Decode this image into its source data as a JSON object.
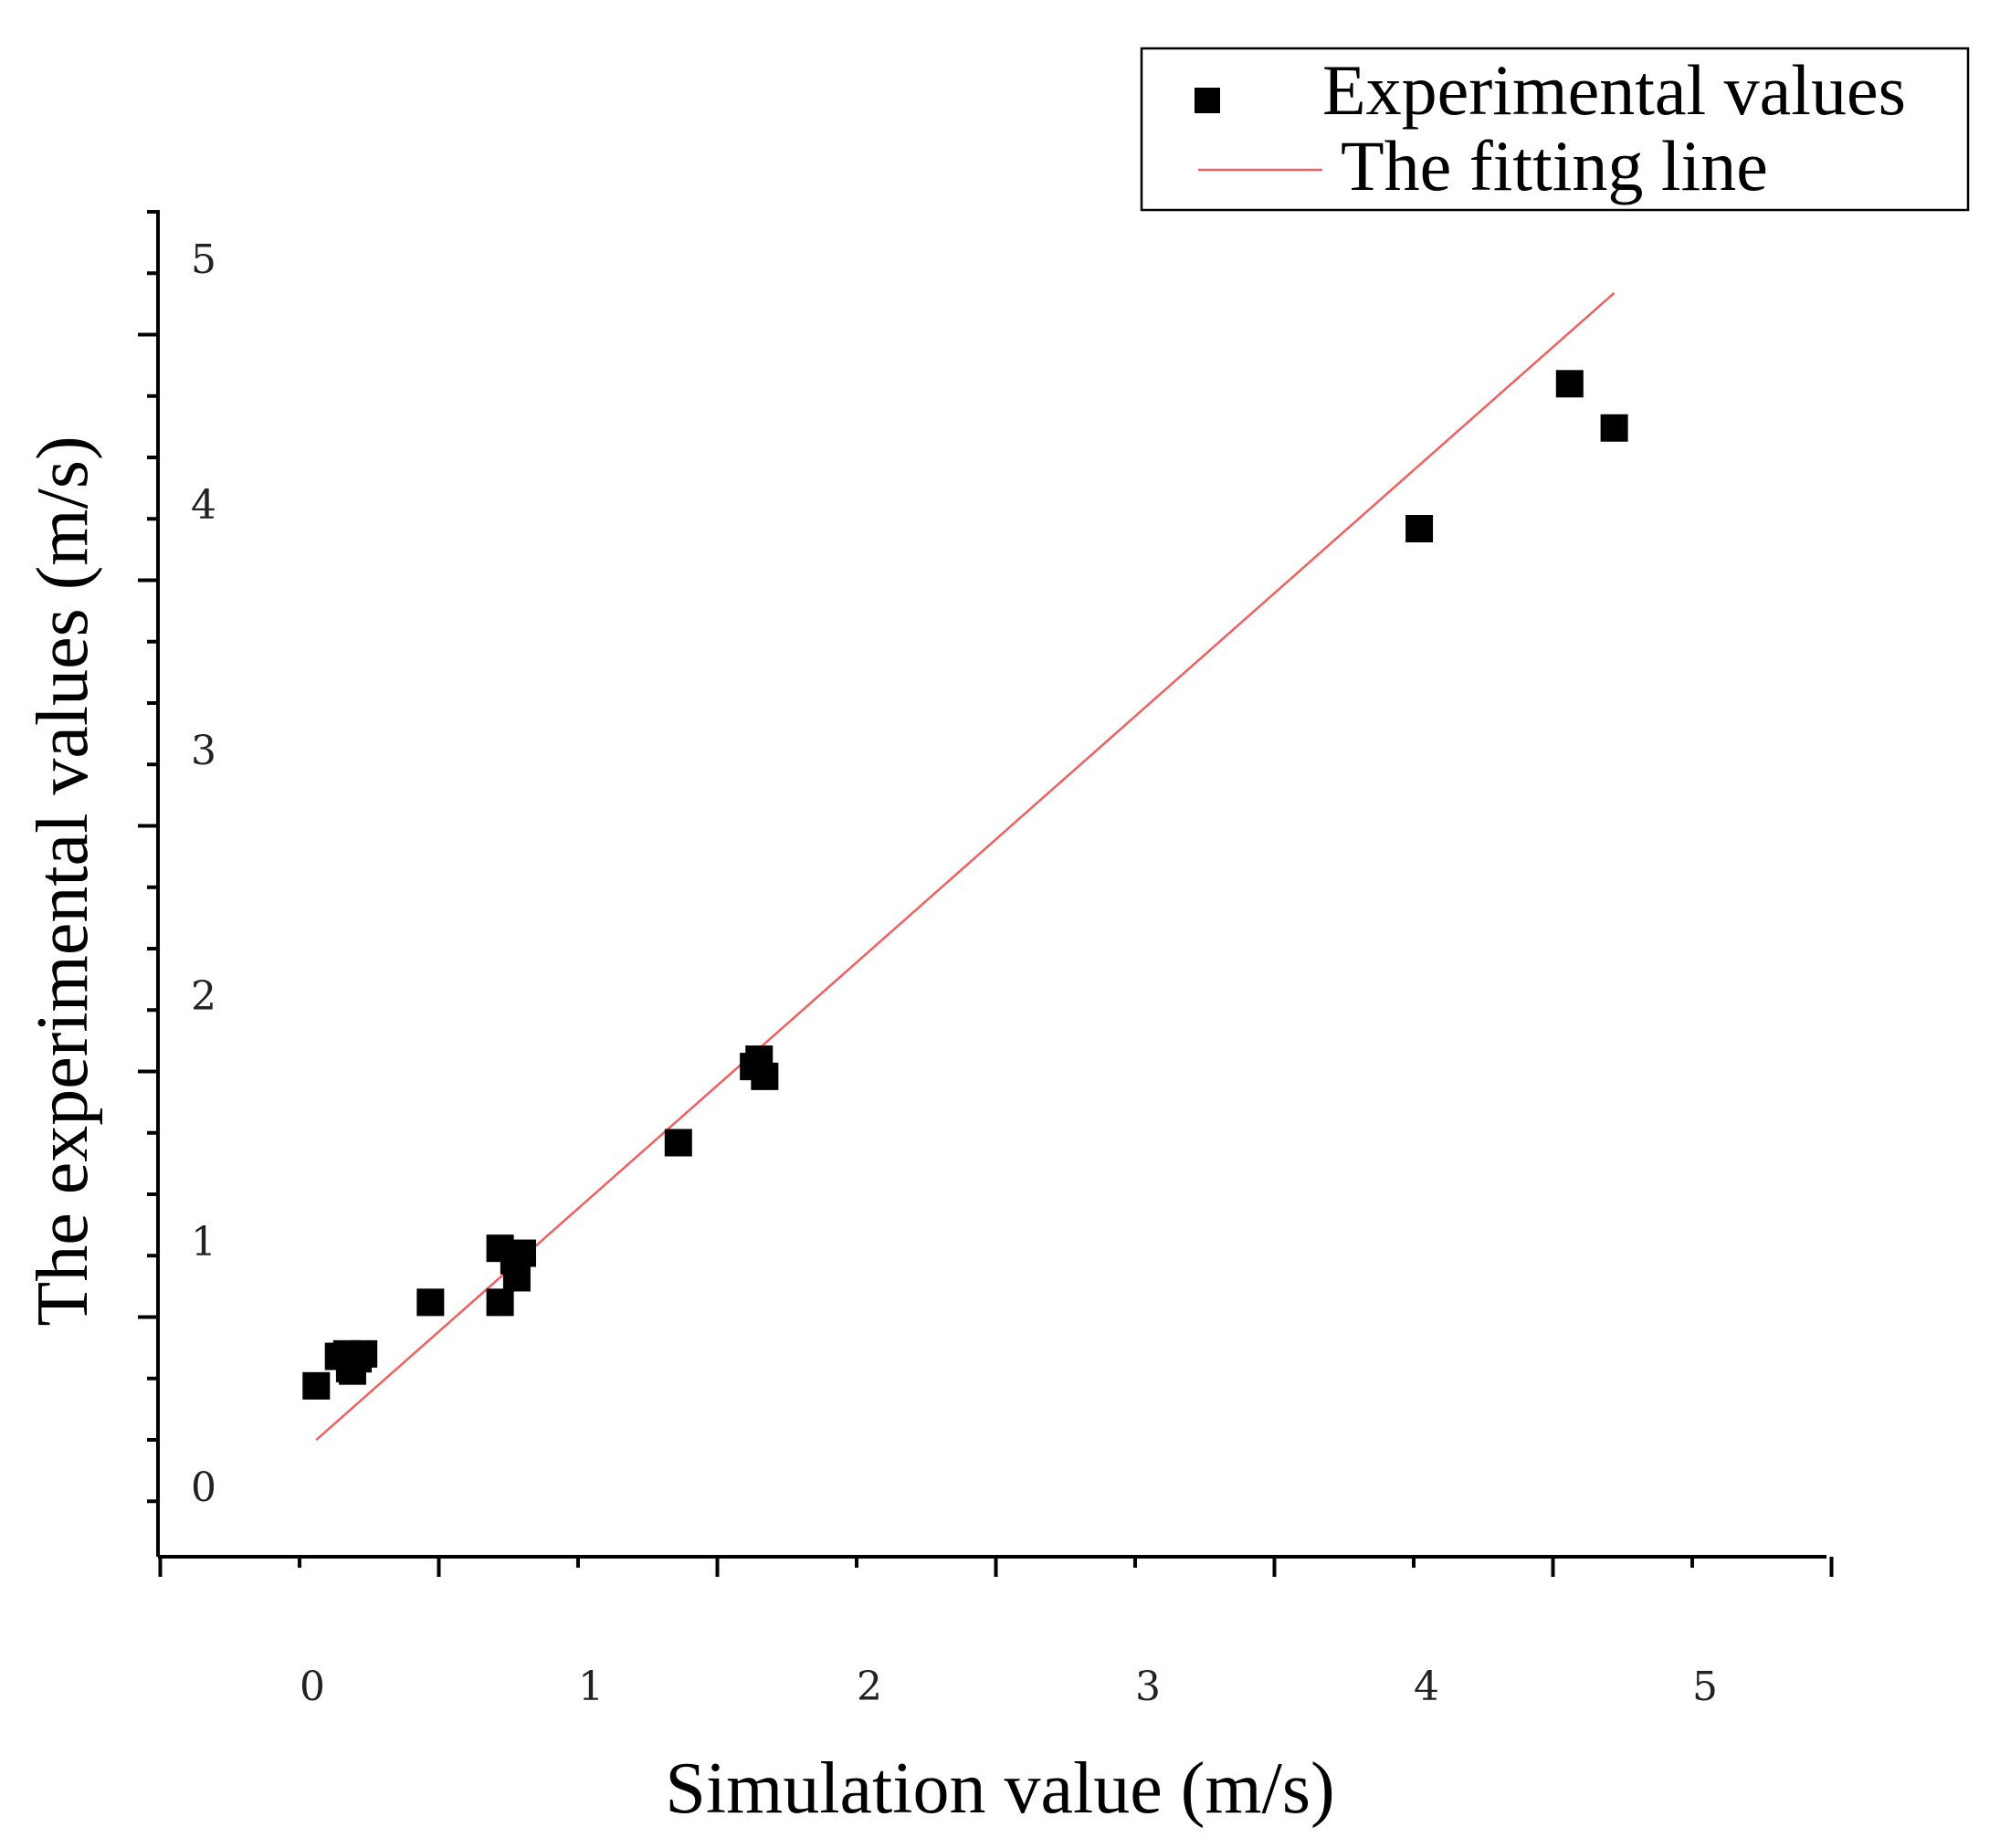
{
  "chart_data": {
    "type": "scatter",
    "title": "",
    "xlabel": "Simulation value (m/s)",
    "ylabel": "The experimental values (m/s)",
    "xlim": [
      -0.5,
      5.5
    ],
    "ylim": [
      -0.5,
      5.0
    ],
    "xticks": [
      0,
      1,
      2,
      3,
      4,
      5
    ],
    "yticks": [
      0,
      1,
      2,
      3,
      4,
      5
    ],
    "xtick_labels": [
      "0",
      "1",
      "2",
      "3",
      "4",
      "5"
    ],
    "ytick_labels": [
      "0",
      "1",
      "2",
      "3",
      "4",
      "5"
    ],
    "grid": false,
    "legend_position": "top-right",
    "series": [
      {
        "name": "Experimental values",
        "kind": "scatter",
        "marker": "square",
        "color": "#000000",
        "x": [
          0.06,
          0.14,
          0.18,
          0.21,
          0.17,
          0.19,
          0.23,
          0.47,
          0.72,
          0.72,
          0.78,
          0.8,
          0.77,
          1.36,
          1.63,
          1.67,
          1.65,
          4.02,
          4.56,
          4.72
        ],
        "y": [
          0.22,
          0.34,
          0.29,
          0.33,
          0.35,
          0.28,
          0.35,
          0.56,
          0.56,
          0.78,
          0.66,
          0.76,
          0.73,
          1.21,
          1.52,
          1.48,
          1.55,
          3.71,
          4.3,
          4.12
        ]
      },
      {
        "name": "The fitting line",
        "kind": "line",
        "color": "#f06060",
        "x": [
          0.06,
          4.72
        ],
        "y": [
          0.0,
          4.67
        ]
      }
    ]
  }
}
